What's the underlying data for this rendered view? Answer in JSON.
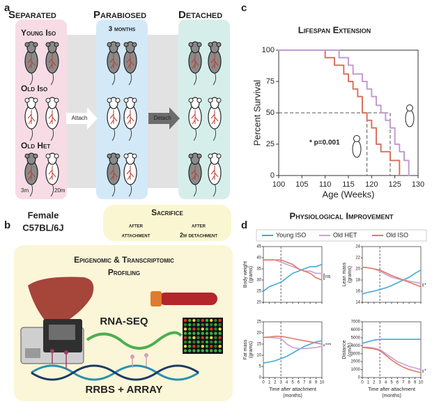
{
  "figure": {
    "panel_labels": [
      "a",
      "b",
      "c",
      "d"
    ]
  },
  "panel_a": {
    "columns": [
      "Separated",
      "Parabiosed",
      "Detached"
    ],
    "duration": "3 months",
    "rows": [
      "Young Iso",
      "Old Iso",
      "Old Het"
    ],
    "ages": [
      "3m",
      "20m"
    ],
    "arrows": [
      "Attach",
      "Detach"
    ]
  },
  "panel_b": {
    "strain": [
      "Female",
      "C57BL/6J"
    ],
    "sacrifice": {
      "title": "Sacrifice",
      "left": [
        "after",
        "attachment"
      ],
      "right": [
        "after",
        "2m detachment"
      ]
    },
    "profiling": {
      "title": [
        "Epigenomic & Transcriptomic",
        "Profiling"
      ],
      "methods": [
        "RNA-SEQ",
        "RRBS + ARRAY"
      ]
    }
  },
  "chart_data": [
    {
      "type": "step",
      "title": "Lifespan Extension",
      "xlabel": "Age (Weeks)",
      "ylabel": "Percent Survival",
      "xlim": [
        100,
        130
      ],
      "xticks": [
        100,
        105,
        110,
        115,
        120,
        125,
        130
      ],
      "ylim": [
        0,
        100
      ],
      "yticks": [
        0,
        25,
        50,
        75,
        100
      ],
      "annotation": "* p=0.001",
      "median_line": {
        "y": 50,
        "x": [
          119,
          124
        ]
      },
      "series": [
        {
          "color": "#d9735e",
          "x": [
            100,
            110,
            112,
            114,
            115,
            116,
            117,
            118,
            119,
            120,
            121,
            122,
            124,
            126
          ],
          "values": [
            100,
            94,
            88,
            81,
            75,
            69,
            63,
            50,
            44,
            38,
            25,
            19,
            12,
            0
          ]
        },
        {
          "color": "#c39bd0",
          "x": [
            100,
            113,
            115,
            116,
            118,
            119,
            120,
            121,
            122,
            123,
            124,
            125,
            126,
            127,
            128
          ],
          "values": [
            100,
            94,
            88,
            81,
            75,
            69,
            63,
            56,
            50,
            44,
            38,
            25,
            19,
            12,
            0
          ]
        }
      ]
    },
    {
      "type": "line",
      "title": "Physiological Improvement",
      "xlabel": [
        "Time after attachment",
        "(months)"
      ],
      "x": [
        0,
        1,
        2,
        3,
        4,
        5,
        6,
        7,
        8,
        9,
        10
      ],
      "xlim": [
        0,
        10
      ],
      "xticks": [
        0,
        1,
        2,
        3,
        4,
        5,
        6,
        7,
        8,
        9,
        10
      ],
      "event_x": 3,
      "series": [
        {
          "name": "Young ISO",
          "color": "#3fa9dc"
        },
        {
          "name": "Old HET",
          "color": "#c89fd6"
        },
        {
          "name": "Old ISO",
          "color": "#e07866"
        }
      ],
      "panels": [
        {
          "ylabel": [
            "Body weight",
            "(grams)"
          ],
          "ylim": [
            20,
            45
          ],
          "yticks": [
            20,
            25,
            30,
            35,
            40,
            45
          ],
          "annotation": "ns",
          "values": [
            [
              25,
              27,
              28,
              29,
              31,
              33,
              34,
              35,
              36,
              36,
              37
            ],
            [
              39,
              39,
              39,
              38,
              37,
              36,
              35,
              34,
              34,
              33,
              33
            ],
            [
              39,
              39,
              39,
              39,
              38,
              37,
              35,
              34,
              33,
              31,
              30
            ]
          ]
        },
        {
          "ylabel": [
            "Lean mass",
            "(grams)"
          ],
          "ylim": [
            14,
            24
          ],
          "yticks": [
            14,
            16,
            18,
            20,
            22,
            24
          ],
          "annotation": "*",
          "values": [
            [
              15.5,
              15.8,
              16,
              16.3,
              16.6,
              17,
              17.5,
              18,
              18.5,
              19.2,
              19.8
            ],
            [
              20.3,
              20.2,
              20,
              19.6,
              19,
              18.5,
              18.2,
              18,
              17.8,
              17.6,
              17.4
            ],
            [
              20.3,
              20.2,
              20,
              19.8,
              19.3,
              18.8,
              18.4,
              18,
              17.6,
              17.2,
              16.8
            ]
          ]
        },
        {
          "ylabel": [
            "Fat mass",
            "(grams)"
          ],
          "ylim": [
            0,
            25
          ],
          "yticks": [
            0,
            5,
            10,
            15,
            20,
            25
          ],
          "annotation": "***",
          "values": [
            [
              6.5,
              7,
              7.5,
              8.5,
              9.5,
              11,
              12.5,
              14,
              15,
              16,
              16.5
            ],
            [
              18,
              18,
              17.8,
              17.5,
              15,
              13.5,
              13,
              13,
              13.2,
              13.5,
              14
            ],
            [
              18,
              18.2,
              18.5,
              18.5,
              18,
              17.5,
              17,
              16.5,
              16,
              15.5,
              15
            ]
          ]
        },
        {
          "ylabel": [
            "Distance",
            "(cm/h)"
          ],
          "ylim": [
            0,
            7000
          ],
          "yticks": [
            0,
            1000,
            2000,
            3000,
            4000,
            5000,
            6000,
            7000
          ],
          "annotation": "*",
          "values": [
            [
              4300,
              4500,
              4700,
              4800,
              4800,
              4800,
              4800,
              4800,
              4800,
              4800,
              4800
            ],
            [
              3800,
              3800,
              3700,
              3500,
              3000,
              2500,
              2000,
              1700,
              1400,
              1200,
              1000
            ],
            [
              3800,
              3700,
              3600,
              3400,
              2800,
              2200,
              1700,
              1300,
              1000,
              800,
              600
            ]
          ]
        }
      ]
    }
  ]
}
